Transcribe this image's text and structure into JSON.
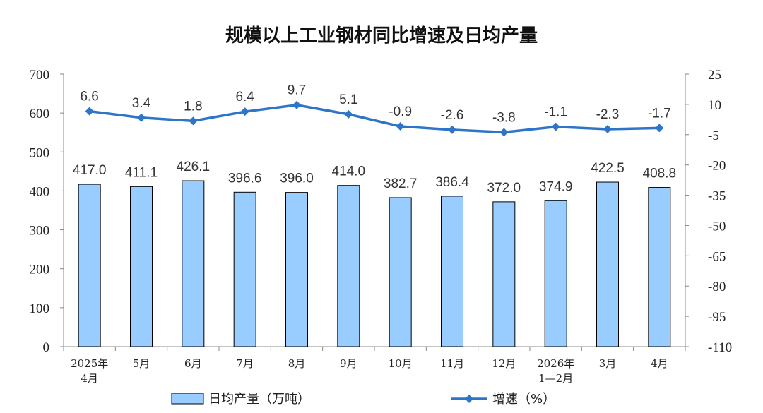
{
  "chart_data": {
    "type": "bar",
    "title": "规模以上工业钢材同比增速及日均产量",
    "categories": [
      [
        "2025年",
        "4月"
      ],
      [
        "5月"
      ],
      [
        "6月"
      ],
      [
        "7月"
      ],
      [
        "8月"
      ],
      [
        "9月"
      ],
      [
        "10月"
      ],
      [
        "11月"
      ],
      [
        "12月"
      ],
      [
        "2026年",
        "1—2月"
      ],
      [
        "3月"
      ],
      [
        "4月"
      ]
    ],
    "series": [
      {
        "name": "日均产量（万吨）",
        "type": "bar",
        "axis": "left",
        "color": "#99CCFF",
        "values": [
          417.0,
          411.1,
          426.1,
          396.6,
          396.0,
          414.0,
          382.7,
          386.4,
          372.0,
          374.9,
          422.5,
          408.8
        ],
        "labels": [
          "417.0",
          "411.1",
          "426.1",
          "396.6",
          "396.0",
          "414.0",
          "382.7",
          "386.4",
          "372.0",
          "374.9",
          "422.5",
          "408.8"
        ]
      },
      {
        "name": "增速（%）",
        "type": "line",
        "axis": "right",
        "color": "#2E75C7",
        "values": [
          6.6,
          3.4,
          1.8,
          6.4,
          9.7,
          5.1,
          -0.9,
          -2.6,
          -3.8,
          -1.1,
          -2.3,
          -1.7
        ],
        "labels": [
          "6.6",
          "3.4",
          "1.8",
          "6.4",
          "9.7",
          "5.1",
          "-0.9",
          "-2.6",
          "-3.8",
          "-1.1",
          "-2.3",
          "-1.7"
        ]
      }
    ],
    "y_left": {
      "range": [
        0,
        700
      ],
      "ticks": [
        "0",
        "100",
        "200",
        "300",
        "400",
        "500",
        "600",
        "700"
      ]
    },
    "y_right": {
      "range": [
        -110,
        25
      ],
      "ticks": [
        "-110",
        "-95",
        "-80",
        "-65",
        "-50",
        "-35",
        "-20",
        "-5",
        "10",
        "25"
      ]
    },
    "grid": false,
    "legend_position": "bottom"
  }
}
